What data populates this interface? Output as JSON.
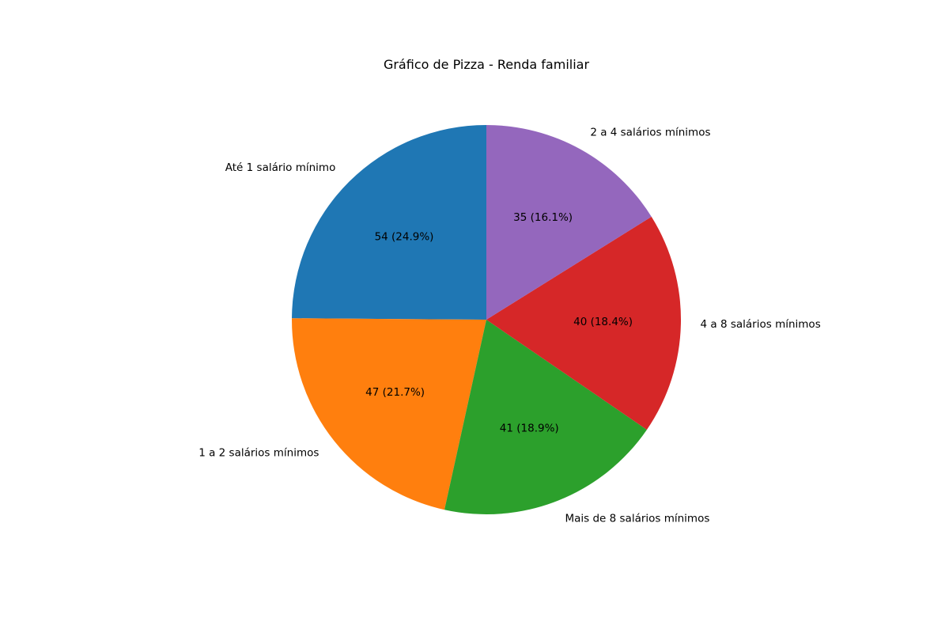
{
  "chart_data": {
    "type": "pie",
    "title": "Gráfico de Pizza - Renda familiar",
    "slices": [
      {
        "label": "Até 1 salário mínimo",
        "value": 54,
        "display": "54 (24.9%)",
        "color": "#1f77b4"
      },
      {
        "label": "1 a 2 salários mínimos",
        "value": 47,
        "display": "47 (21.7%)",
        "color": "#ff7f0e"
      },
      {
        "label": "Mais de 8 salários mínimos",
        "value": 41,
        "display": "41 (18.9%)",
        "color": "#2ca02c"
      },
      {
        "label": "4 a 8 salários mínimos",
        "value": 40,
        "display": "40 (18.4%)",
        "color": "#d62728"
      },
      {
        "label": "2 a 4 salários mínimos",
        "value": 35,
        "display": "35 (16.1%)",
        "color": "#9467bd"
      }
    ],
    "start_angle_deg": 90,
    "direction": "counterclockwise"
  }
}
